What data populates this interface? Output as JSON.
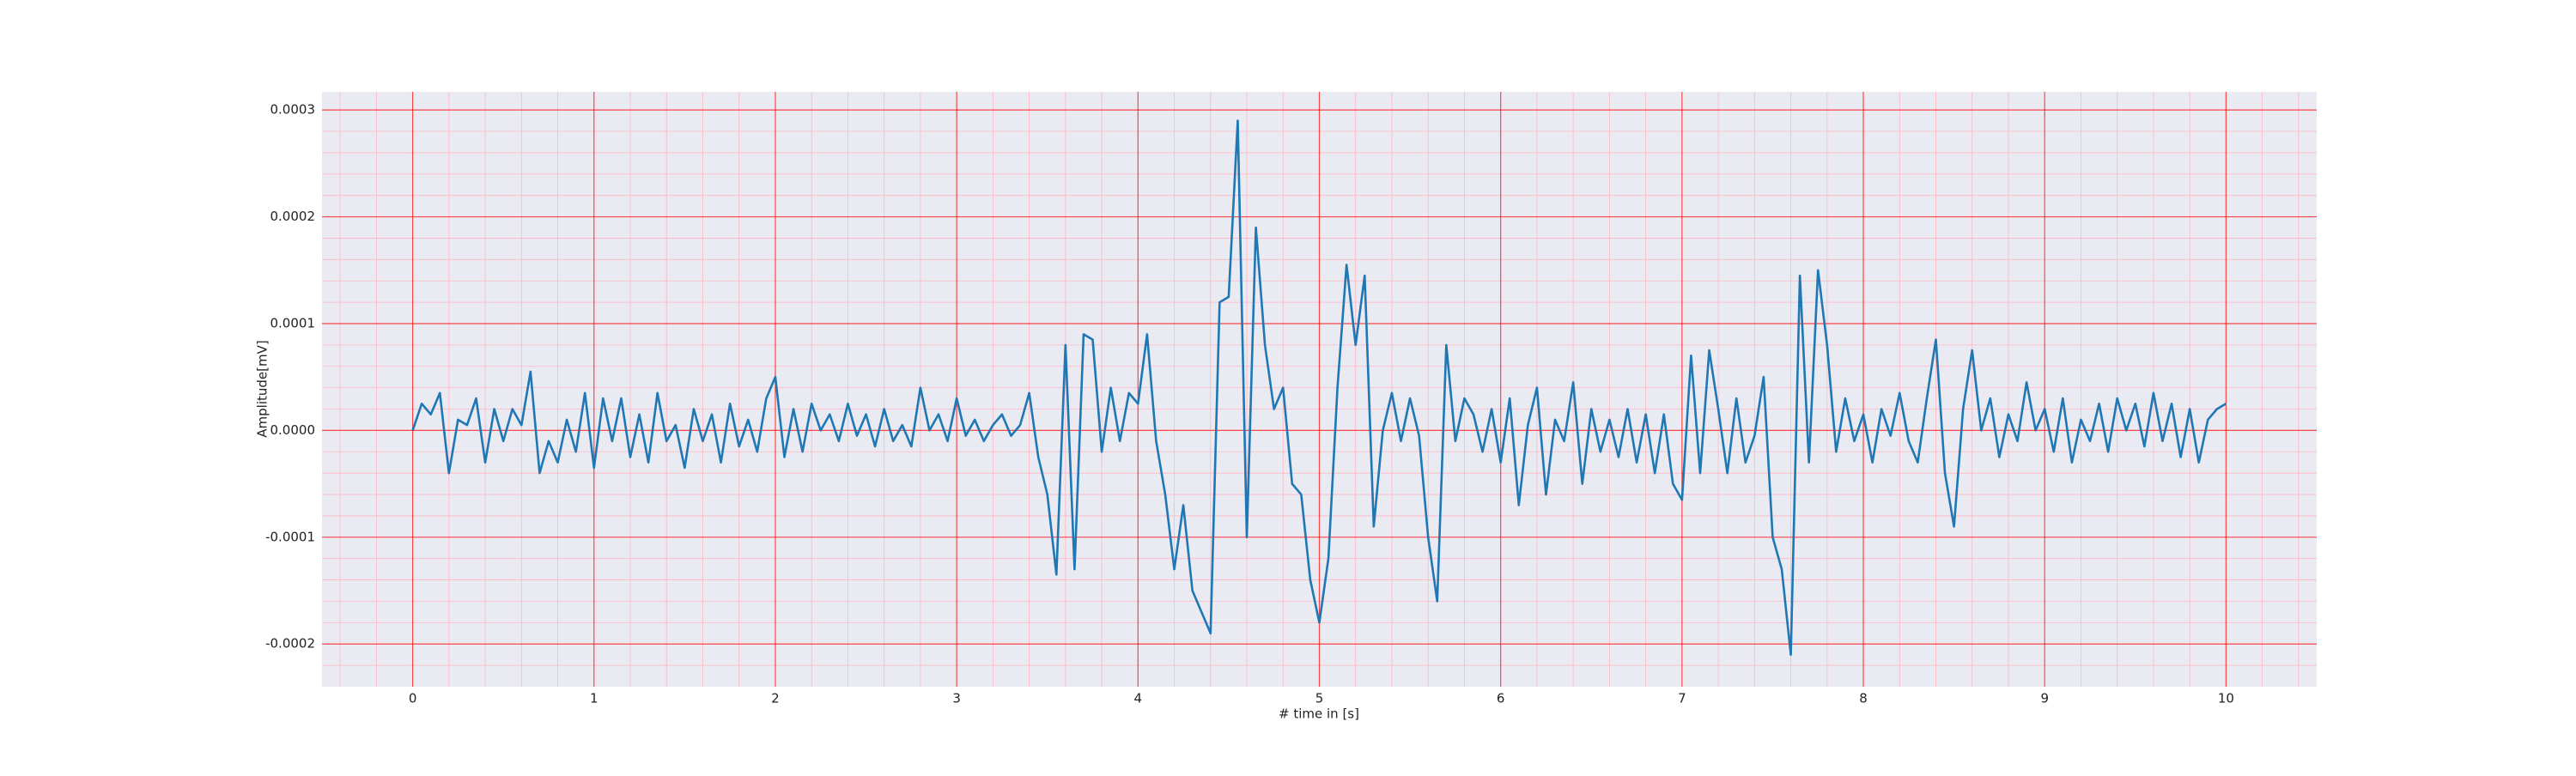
{
  "chart_data": {
    "type": "line",
    "xlabel": "# time in [s]",
    "ylabel": "Amplitude[mV]",
    "color": "#1f77b4",
    "grid": true,
    "minor_grid": true,
    "grid_color": "#ff0000",
    "minor_grid_color": "#ffb6c1",
    "background": "#eaeaf2",
    "xlim": [
      -0.5,
      10.5
    ],
    "xticks": [
      0,
      1,
      2,
      3,
      4,
      5,
      6,
      7,
      8,
      9,
      10
    ],
    "ylim": [
      -0.00024,
      0.000317
    ],
    "yticks": [
      -0.0002,
      -0.0001,
      {
        "value": 0,
        "label": "0.0000"
      },
      0.0001,
      0.0002,
      0.0003
    ],
    "x": [
      0,
      0.05,
      0.1,
      0.15,
      0.2,
      0.25,
      0.3,
      0.35,
      0.4,
      0.45,
      0.5,
      0.55,
      0.6,
      0.65,
      0.7,
      0.75,
      0.8,
      0.85,
      0.9,
      0.95,
      1,
      1.05,
      1.1,
      1.15,
      1.2,
      1.25,
      1.3,
      1.35,
      1.4,
      1.45,
      1.5,
      1.55,
      1.6,
      1.65,
      1.7,
      1.75,
      1.8,
      1.85,
      1.9,
      1.95,
      2,
      2.05,
      2.1,
      2.15,
      2.2,
      2.25,
      2.3,
      2.35,
      2.4,
      2.45,
      2.5,
      2.55,
      2.6,
      2.65,
      2.7,
      2.75,
      2.8,
      2.85,
      2.9,
      2.95,
      3,
      3.05,
      3.1,
      3.15,
      3.2,
      3.25,
      3.3,
      3.35,
      3.4,
      3.45,
      3.5,
      3.55,
      3.6,
      3.65,
      3.7,
      3.75,
      3.8,
      3.85,
      3.9,
      3.95,
      4,
      4.05,
      4.1,
      4.15,
      4.2,
      4.25,
      4.3,
      4.35,
      4.4,
      4.45,
      4.5,
      4.55,
      4.6,
      4.65,
      4.7,
      4.75,
      4.8,
      4.85,
      4.9,
      4.95,
      5,
      5.05,
      5.1,
      5.15,
      5.2,
      5.25,
      5.3,
      5.35,
      5.4,
      5.45,
      5.5,
      5.55,
      5.6,
      5.65,
      5.7,
      5.75,
      5.8,
      5.85,
      5.9,
      5.95,
      6,
      6.05,
      6.1,
      6.15,
      6.2,
      6.25,
      6.3,
      6.35,
      6.4,
      6.45,
      6.5,
      6.55,
      6.6,
      6.65,
      6.7,
      6.75,
      6.8,
      6.85,
      6.9,
      6.95,
      7,
      7.05,
      7.1,
      7.15,
      7.2,
      7.25,
      7.3,
      7.35,
      7.4,
      7.45,
      7.5,
      7.55,
      7.6,
      7.65,
      7.7,
      7.75,
      7.8,
      7.85,
      7.9,
      7.95,
      8,
      8.05,
      8.1,
      8.15,
      8.2,
      8.25,
      8.3,
      8.35,
      8.4,
      8.45,
      8.5,
      8.55,
      8.6,
      8.65,
      8.7,
      8.75,
      8.8,
      8.85,
      8.9,
      8.95,
      9,
      9.05,
      9.1,
      9.15,
      9.2,
      9.25,
      9.3,
      9.35,
      9.4,
      9.45,
      9.5,
      9.55,
      9.6,
      9.65,
      9.7,
      9.75,
      9.8,
      9.85,
      9.9,
      9.95,
      10
    ],
    "values": [
      0,
      2.5e-05,
      1.5e-05,
      3.5e-05,
      -4e-05,
      1e-05,
      5e-06,
      3e-05,
      -3e-05,
      2e-05,
      -1e-05,
      2e-05,
      5e-06,
      5.5e-05,
      -4e-05,
      -1e-05,
      -3e-05,
      1e-05,
      -2e-05,
      3.5e-05,
      -3.5e-05,
      3e-05,
      -1e-05,
      3e-05,
      -2.5e-05,
      1.5e-05,
      -3e-05,
      3.5e-05,
      -1e-05,
      5e-06,
      -3.5e-05,
      2e-05,
      -1e-05,
      1.5e-05,
      -3e-05,
      2.5e-05,
      -1.5e-05,
      1e-05,
      -2e-05,
      3e-05,
      5e-05,
      -2.5e-05,
      2e-05,
      -2e-05,
      2.5e-05,
      0,
      1.5e-05,
      -1e-05,
      2.5e-05,
      -5e-06,
      1.5e-05,
      -1.5e-05,
      2e-05,
      -1e-05,
      5e-06,
      -1.5e-05,
      4e-05,
      0,
      1.5e-05,
      -1e-05,
      3e-05,
      -5e-06,
      1e-05,
      -1e-05,
      5e-06,
      1.5e-05,
      -5e-06,
      5e-06,
      3.5e-05,
      -2.5e-05,
      -6e-05,
      -0.000135,
      8e-05,
      -0.00013,
      9e-05,
      8.5e-05,
      -2e-05,
      4e-05,
      -1e-05,
      3.5e-05,
      2.5e-05,
      9e-05,
      -1e-05,
      -6e-05,
      -0.00013,
      -7e-05,
      -0.00015,
      -0.00017,
      -0.00019,
      0.00012,
      0.000125,
      0.00029,
      -0.0001,
      0.00019,
      8e-05,
      2e-05,
      4e-05,
      -5e-05,
      -6e-05,
      -0.00014,
      -0.00018,
      -0.00012,
      4e-05,
      0.000155,
      8e-05,
      0.000145,
      -9e-05,
      0,
      3.5e-05,
      -1e-05,
      3e-05,
      -5e-06,
      -0.0001,
      -0.00016,
      8e-05,
      -1e-05,
      3e-05,
      1.5e-05,
      -2e-05,
      2e-05,
      -3e-05,
      3e-05,
      -7e-05,
      5e-06,
      4e-05,
      -6e-05,
      1e-05,
      -1e-05,
      4.5e-05,
      -5e-05,
      2e-05,
      -2e-05,
      1e-05,
      -2.5e-05,
      2e-05,
      -3e-05,
      1.5e-05,
      -4e-05,
      1.5e-05,
      -5e-05,
      -6.5e-05,
      7e-05,
      -4e-05,
      7.5e-05,
      2e-05,
      -4e-05,
      3e-05,
      -3e-05,
      -5e-06,
      5e-05,
      -0.0001,
      -0.00013,
      -0.00021,
      0.000145,
      -3e-05,
      0.00015,
      8e-05,
      -2e-05,
      3e-05,
      -1e-05,
      1.5e-05,
      -3e-05,
      2e-05,
      -5e-06,
      3.5e-05,
      -1e-05,
      -3e-05,
      3e-05,
      8.5e-05,
      -4e-05,
      -9e-05,
      2e-05,
      7.5e-05,
      0,
      3e-05,
      -2.5e-05,
      1.5e-05,
      -1e-05,
      4.5e-05,
      0,
      2e-05,
      -2e-05,
      3e-05,
      -3e-05,
      1e-05,
      -1e-05,
      2.5e-05,
      -2e-05,
      3e-05,
      0,
      2.5e-05,
      -1.5e-05,
      3.5e-05,
      -1e-05,
      2.5e-05,
      -2.5e-05,
      2e-05,
      -3e-05,
      1e-05,
      2e-05,
      2.5e-05
    ]
  }
}
